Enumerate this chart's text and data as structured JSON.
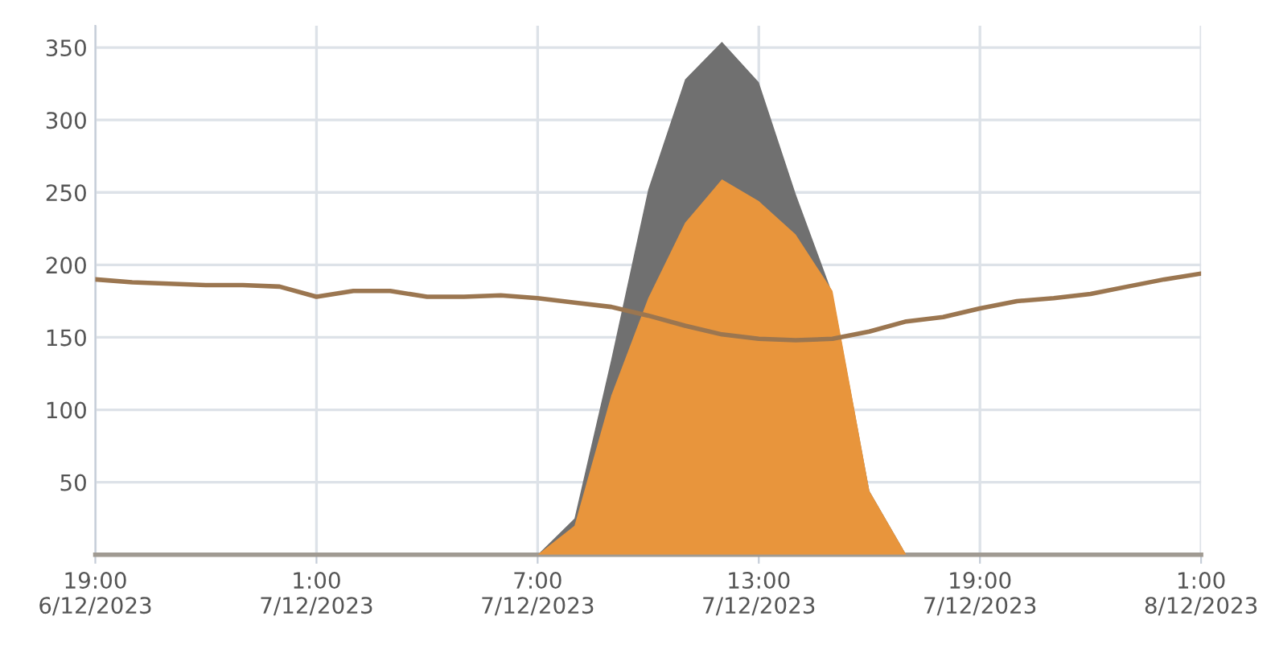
{
  "chart_data": {
    "type": "area",
    "x": [
      "2023-12-06T19:00",
      "2023-12-06T20:00",
      "2023-12-06T21:00",
      "2023-12-06T22:00",
      "2023-12-06T23:00",
      "2023-12-07T00:00",
      "2023-12-07T01:00",
      "2023-12-07T02:00",
      "2023-12-07T03:00",
      "2023-12-07T04:00",
      "2023-12-07T05:00",
      "2023-12-07T06:00",
      "2023-12-07T07:00",
      "2023-12-07T08:00",
      "2023-12-07T09:00",
      "2023-12-07T10:00",
      "2023-12-07T11:00",
      "2023-12-07T12:00",
      "2023-12-07T13:00",
      "2023-12-07T14:00",
      "2023-12-07T15:00",
      "2023-12-07T16:00",
      "2023-12-07T17:00",
      "2023-12-07T18:00",
      "2023-12-07T19:00",
      "2023-12-07T20:00",
      "2023-12-07T21:00",
      "2023-12-07T22:00",
      "2023-12-07T23:00",
      "2023-12-08T00:00",
      "2023-12-08T01:00"
    ],
    "series": [
      {
        "color": "#707070",
        "values": [
          0,
          0,
          0,
          0,
          0,
          0,
          0,
          0,
          0,
          0,
          0,
          0,
          0,
          25,
          135,
          252,
          328,
          354,
          326,
          249,
          180,
          44,
          0,
          0,
          0,
          0,
          0,
          0,
          0,
          0,
          0
        ]
      },
      {
        "color": "#e8953c",
        "values": [
          0,
          0,
          0,
          0,
          0,
          0,
          0,
          0,
          0,
          0,
          0,
          0,
          0,
          20,
          110,
          177,
          229,
          259,
          244,
          221,
          182,
          44,
          0,
          0,
          0,
          0,
          0,
          0,
          0,
          0,
          0
        ]
      },
      {
        "type": "line",
        "color": "#9b7650",
        "values": [
          190,
          188,
          187,
          186,
          186,
          185,
          178,
          182,
          182,
          178,
          178,
          179,
          177,
          174,
          171,
          165,
          158,
          152,
          149,
          148,
          149,
          154,
          161,
          164,
          170,
          175,
          177,
          180,
          185,
          190,
          194
        ]
      }
    ],
    "xlim": [
      "2023-12-06T19:00",
      "2023-12-08T01:00"
    ],
    "xticks": [
      {
        "value": "2023-12-06T19:00",
        "label": "19:00\n6/12/2023"
      },
      {
        "value": "2023-12-07T01:00",
        "label": "1:00\n7/12/2023"
      },
      {
        "value": "2023-12-07T07:00",
        "label": "7:00\n7/12/2023"
      },
      {
        "value": "2023-12-07T13:00",
        "label": "13:00\n7/12/2023"
      },
      {
        "value": "2023-12-07T19:00",
        "label": "19:00\n7/12/2023"
      },
      {
        "value": "2023-12-08T01:00",
        "label": "1:00\n8/12/2023"
      }
    ],
    "ylim": [
      0,
      365
    ],
    "yticks": [
      {
        "value": 0,
        "label": null
      },
      50,
      100,
      150,
      200,
      250,
      300,
      350
    ],
    "grid": true,
    "legend": false
  }
}
